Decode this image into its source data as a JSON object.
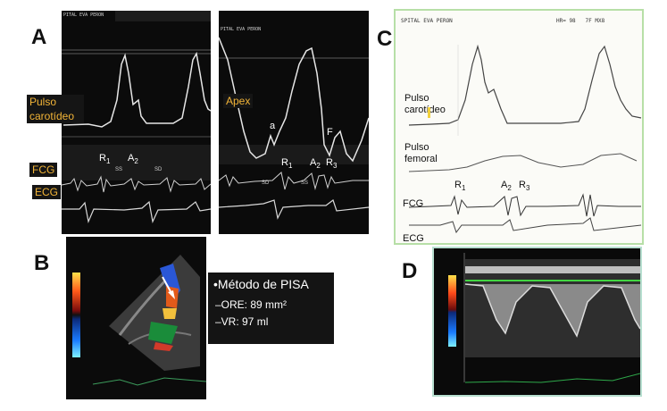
{
  "panels": {
    "A": {
      "letter": "A",
      "header_left": "PITAL EVA PERON",
      "header_right": "PITAL EVA PERON",
      "label_carotid": "Pulso carotídeo",
      "label_apex": "Apex",
      "label_fcg": "FCG",
      "label_ecg": "ECG",
      "wave_a": "a",
      "wave_f": "F",
      "left_sounds": {
        "r": "R",
        "r_sub": "1",
        "a": "A",
        "a_sub": "2"
      },
      "left_small": {
        "ss": "SS",
        "sd": "SD"
      },
      "right_sounds": {
        "r": "R",
        "r_sub": "1",
        "a": "A",
        "a_sub": "2",
        "r3": "R",
        "r3_sub": "3"
      },
      "right_small": {
        "sd": "SD",
        "ss": "SS"
      }
    },
    "B": {
      "letter": "B",
      "pisa_title": "•Método de PISA",
      "pisa_line1": "–ORE: 89 mm²",
      "pisa_line2": "–VR: 97 ml"
    },
    "C": {
      "letter": "C",
      "header_left": "SPITAL EVA PERON",
      "header_right": "HR= 98   7F MX8",
      "label_carotid": "Pulso carotídeo",
      "label_femoral": "Pulso femoral",
      "label_fcg": "FCG",
      "label_ecg": "ECG",
      "sounds": {
        "r": "R",
        "r_sub": "1",
        "a": "A",
        "a_sub": "2",
        "r3": "R",
        "r3_sub": "3"
      }
    },
    "D": {
      "letter": "D"
    }
  },
  "colors": {
    "label_orange": "#f2b437",
    "panel_c_border": "#b7dfa7",
    "panel_d_border": "#b7dfd0",
    "trace_white": "#e6e6e6"
  }
}
